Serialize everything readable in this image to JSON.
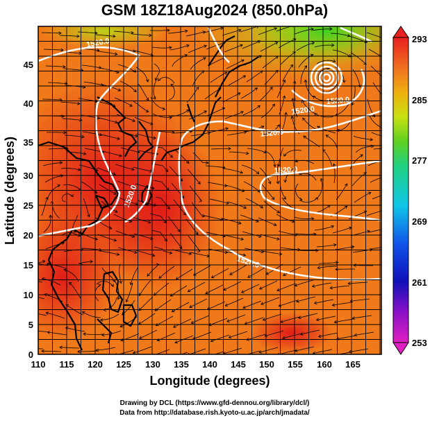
{
  "title": "GSM 18Z18Aug2024 (850.0hPa)",
  "xlabel": "Longitude (degrees)",
  "ylabel": "Latitude  (degrees)",
  "x_ticks": [
    "110",
    "115",
    "120",
    "125",
    "130",
    "135",
    "140",
    "145",
    "150",
    "155",
    "160",
    "165"
  ],
  "y_ticks": [
    "0",
    "5",
    "10",
    "15",
    "20",
    "25",
    "30",
    "35",
    "40",
    "45"
  ],
  "colorbar_ticks": [
    "253",
    "261",
    "269",
    "277",
    "285",
    "293"
  ],
  "contour_labels": [
    "1520.0",
    "1520.0",
    "1520.0",
    "1520.0",
    "1520.0",
    "1520.0",
    "1520.0"
  ],
  "credits": {
    "line1": "Drawing by DCL (https://www.gfd-dennou.org/library/dcl/)",
    "line2": "Data from http://database.rish.kyoto-u.ac.jp/arch/jmadata/"
  },
  "colors": {
    "warm": "#e8281e",
    "mid": "#f07a1a",
    "cool": "#7ad21c",
    "contour": "#ffffff",
    "coast": "#000000"
  },
  "chart_data": {
    "type": "heatmap",
    "title": "GSM 18Z18Aug2024 (850.0hPa)",
    "xlabel": "Longitude (degrees)",
    "ylabel": "Latitude  (degrees)",
    "xlim": [
      110,
      170
    ],
    "ylim": [
      0,
      50
    ],
    "colorbar": {
      "min": 253,
      "max": 293,
      "ticks": [
        253,
        261,
        269,
        277,
        285,
        293
      ]
    },
    "contour_level": 1520.0,
    "grid": true
  }
}
